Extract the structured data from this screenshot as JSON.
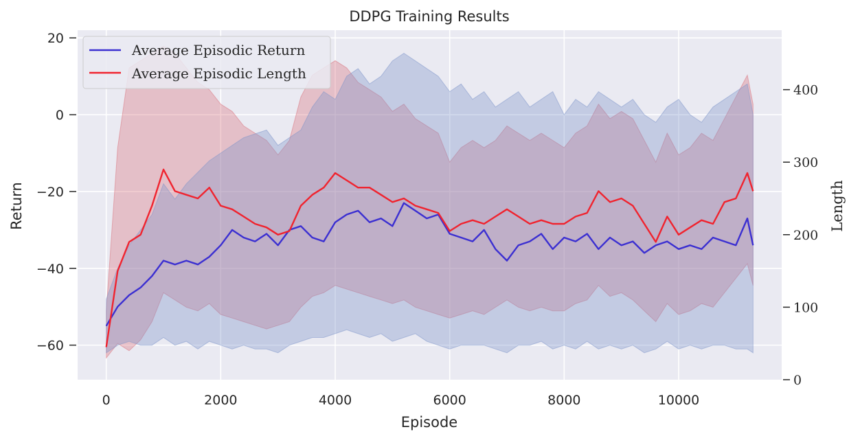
{
  "chart_data": {
    "type": "line",
    "title": "DDPG Training Results",
    "xlabel": "Episode",
    "ylabel": "Return",
    "y2label": "Length",
    "xlim": [
      -500,
      11800
    ],
    "ylim": [
      -69,
      22
    ],
    "y2lim": [
      0,
      482
    ],
    "x_ticks": [
      0,
      2000,
      4000,
      6000,
      8000,
      10000
    ],
    "x_tick_labels": [
      "0",
      "2000",
      "4000",
      "6000",
      "8000",
      "10000"
    ],
    "y_ticks": [
      -60,
      -40,
      -20,
      0,
      20
    ],
    "y_tick_labels": [
      "−60",
      "−40",
      "−20",
      "0",
      "20"
    ],
    "y2_ticks": [
      0,
      100,
      200,
      300,
      400
    ],
    "y2_tick_labels": [
      "0",
      "100",
      "200",
      "300",
      "400"
    ],
    "grid": true,
    "legend_position": "top-left",
    "colors": {
      "background": "#eaeaf2",
      "grid": "#ffffff",
      "return_line": "#3b2fd1",
      "return_band": "#7b93c9",
      "length_line": "#f0232e",
      "length_band": "#d9707a"
    },
    "series": [
      {
        "name": "Average Episodic Return",
        "axis": "left",
        "x": [
          0,
          200,
          400,
          600,
          800,
          1000,
          1200,
          1400,
          1600,
          1800,
          2000,
          2200,
          2400,
          2600,
          2800,
          3000,
          3200,
          3400,
          3600,
          3800,
          4000,
          4200,
          4400,
          4600,
          4800,
          5000,
          5200,
          5400,
          5600,
          5800,
          6000,
          6200,
          6400,
          6600,
          6800,
          7000,
          7200,
          7400,
          7600,
          7800,
          8000,
          8200,
          8400,
          8600,
          8800,
          9000,
          9200,
          9400,
          9600,
          9800,
          10000,
          10200,
          10400,
          10600,
          10800,
          11000,
          11200,
          11300
        ],
        "values": [
          -55,
          -50,
          -47,
          -45,
          -42,
          -38,
          -39,
          -38,
          -39,
          -37,
          -34,
          -30,
          -32,
          -33,
          -31,
          -34,
          -30,
          -29,
          -32,
          -33,
          -28,
          -26,
          -25,
          -28,
          -27,
          -29,
          -23,
          -25,
          -27,
          -26,
          -31,
          -32,
          -33,
          -30,
          -35,
          -38,
          -34,
          -33,
          -31,
          -35,
          -32,
          -33,
          -31,
          -35,
          -32,
          -34,
          -33,
          -36,
          -34,
          -33,
          -35,
          -34,
          -35,
          -32,
          -33,
          -34,
          -27,
          -34
        ],
        "upper": [
          -48,
          -40,
          -34,
          -30,
          -26,
          -18,
          -22,
          -18,
          -15,
          -12,
          -10,
          -8,
          -6,
          -5,
          -4,
          -8,
          -6,
          -4,
          2,
          6,
          4,
          10,
          12,
          8,
          10,
          14,
          16,
          14,
          12,
          10,
          6,
          8,
          4,
          6,
          2,
          4,
          6,
          2,
          4,
          6,
          0,
          4,
          2,
          6,
          4,
          2,
          4,
          0,
          -2,
          2,
          4,
          0,
          -2,
          2,
          4,
          6,
          8,
          0
        ],
        "lower": [
          -62,
          -60,
          -59,
          -60,
          -60,
          -58,
          -60,
          -59,
          -61,
          -59,
          -60,
          -61,
          -60,
          -61,
          -61,
          -62,
          -60,
          -59,
          -58,
          -58,
          -57,
          -56,
          -57,
          -58,
          -57,
          -59,
          -58,
          -57,
          -59,
          -60,
          -61,
          -60,
          -60,
          -60,
          -61,
          -62,
          -60,
          -60,
          -59,
          -61,
          -60,
          -61,
          -59,
          -61,
          -60,
          -61,
          -60,
          -62,
          -61,
          -59,
          -61,
          -60,
          -61,
          -60,
          -60,
          -61,
          -61,
          -62
        ]
      },
      {
        "name": "Average Episodic Length",
        "axis": "right",
        "x": [
          0,
          200,
          400,
          600,
          800,
          1000,
          1200,
          1400,
          1600,
          1800,
          2000,
          2200,
          2400,
          2600,
          2800,
          3000,
          3200,
          3400,
          3600,
          3800,
          4000,
          4200,
          4400,
          4600,
          4800,
          5000,
          5200,
          5400,
          5600,
          5800,
          6000,
          6200,
          6400,
          6600,
          6800,
          7000,
          7200,
          7400,
          7600,
          7800,
          8000,
          8200,
          8400,
          8600,
          8800,
          9000,
          9200,
          9400,
          9600,
          9800,
          10000,
          10200,
          10400,
          10600,
          10800,
          11000,
          11200,
          11300
        ],
        "values": [
          45,
          150,
          190,
          200,
          240,
          290,
          260,
          255,
          250,
          265,
          240,
          235,
          225,
          215,
          210,
          200,
          205,
          240,
          255,
          265,
          285,
          275,
          265,
          265,
          255,
          245,
          250,
          240,
          235,
          230,
          205,
          215,
          220,
          215,
          225,
          235,
          225,
          215,
          220,
          215,
          215,
          225,
          230,
          260,
          245,
          250,
          240,
          215,
          190,
          225,
          200,
          210,
          220,
          215,
          245,
          250,
          285,
          260
        ],
        "upper": [
          95,
          320,
          430,
          440,
          450,
          460,
          450,
          430,
          410,
          400,
          380,
          370,
          350,
          340,
          330,
          310,
          330,
          390,
          420,
          430,
          440,
          430,
          410,
          400,
          390,
          370,
          380,
          360,
          350,
          340,
          300,
          320,
          330,
          320,
          330,
          350,
          340,
          330,
          340,
          330,
          320,
          340,
          350,
          380,
          360,
          370,
          360,
          330,
          300,
          340,
          310,
          320,
          340,
          330,
          360,
          390,
          420,
          380
        ],
        "lower": [
          30,
          50,
          40,
          55,
          80,
          120,
          110,
          100,
          95,
          105,
          90,
          85,
          80,
          75,
          70,
          75,
          80,
          100,
          115,
          120,
          130,
          125,
          120,
          115,
          110,
          105,
          110,
          100,
          95,
          90,
          85,
          90,
          95,
          90,
          100,
          110,
          100,
          95,
          100,
          95,
          95,
          105,
          110,
          130,
          115,
          120,
          110,
          95,
          80,
          105,
          90,
          95,
          105,
          100,
          120,
          140,
          160,
          130
        ]
      }
    ]
  }
}
